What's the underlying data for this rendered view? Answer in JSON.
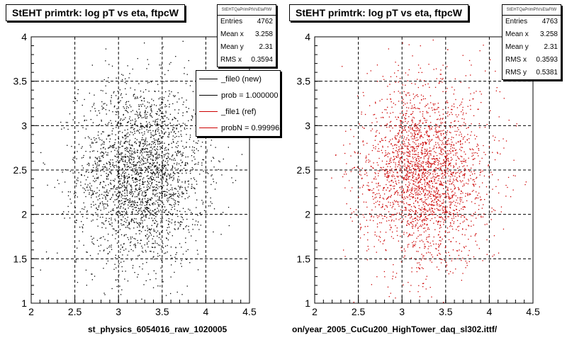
{
  "chart_data": [
    {
      "type": "scatter",
      "title": "StEHT primtrk: log pT vs eta, ftpcW",
      "xlabel": "st_physics_6054016_raw_1020005",
      "ylabel": "",
      "xlim": [
        2,
        4.5
      ],
      "ylim": [
        1,
        4
      ],
      "xticks": [
        "2",
        "2.5",
        "3",
        "3.5",
        "4",
        "4.5"
      ],
      "yticks": [
        "1",
        "1.5",
        "2",
        "2.5",
        "3",
        "3.5",
        "4"
      ],
      "grid": true,
      "marker_color": "#000000",
      "distribution": {
        "entries": 4762,
        "mean_x": 3.258,
        "mean_y": 2.31,
        "rms_x": 0.3594
      },
      "stats": {
        "header": "StEHTQaPrimPtVsEtaFtW",
        "rows": [
          {
            "label": "Entries",
            "value": "4762"
          },
          {
            "label": "Mean x",
            "value": "3.258"
          },
          {
            "label": "Mean y",
            "value": "2.31"
          },
          {
            "label": "RMS x",
            "value": "0.3594"
          }
        ]
      },
      "legend": {
        "placement": "top-right",
        "entries": [
          {
            "label": "_file0 (new)",
            "color": "#000000"
          },
          {
            "label": "prob = 1.000000",
            "color": "#000000"
          },
          {
            "label": "_file1 (ref)",
            "color": "#cc0000"
          },
          {
            "label": "probN = 0.999962",
            "color": "#cc0000"
          }
        ]
      }
    },
    {
      "type": "scatter",
      "title": "StEHT primtrk: log pT vs eta, ftpcW",
      "xlabel": "on/year_2005_CuCu200_HighTower_daq_sl302.ittf/",
      "ylabel": "",
      "xlim": [
        2,
        4.5
      ],
      "ylim": [
        1,
        4
      ],
      "xticks": [
        "2",
        "2.5",
        "3",
        "3.5",
        "4",
        "4.5"
      ],
      "yticks": [
        "1",
        "1.5",
        "2",
        "2.5",
        "3",
        "3.5",
        "4"
      ],
      "grid": true,
      "marker_color": "#cc0000",
      "distribution": {
        "entries": 4763,
        "mean_x": 3.258,
        "mean_y": 2.31,
        "rms_x": 0.3593,
        "rms_y": 0.5381
      },
      "stats": {
        "header": "StEHTQaPrimPtVsEtaFtW",
        "rows": [
          {
            "label": "Entries",
            "value": "4763"
          },
          {
            "label": "Mean x",
            "value": "3.258"
          },
          {
            "label": "Mean y",
            "value": "2.31"
          },
          {
            "label": "RMS x",
            "value": "0.3593"
          },
          {
            "label": "RMS y",
            "value": "0.5381"
          }
        ]
      }
    }
  ]
}
